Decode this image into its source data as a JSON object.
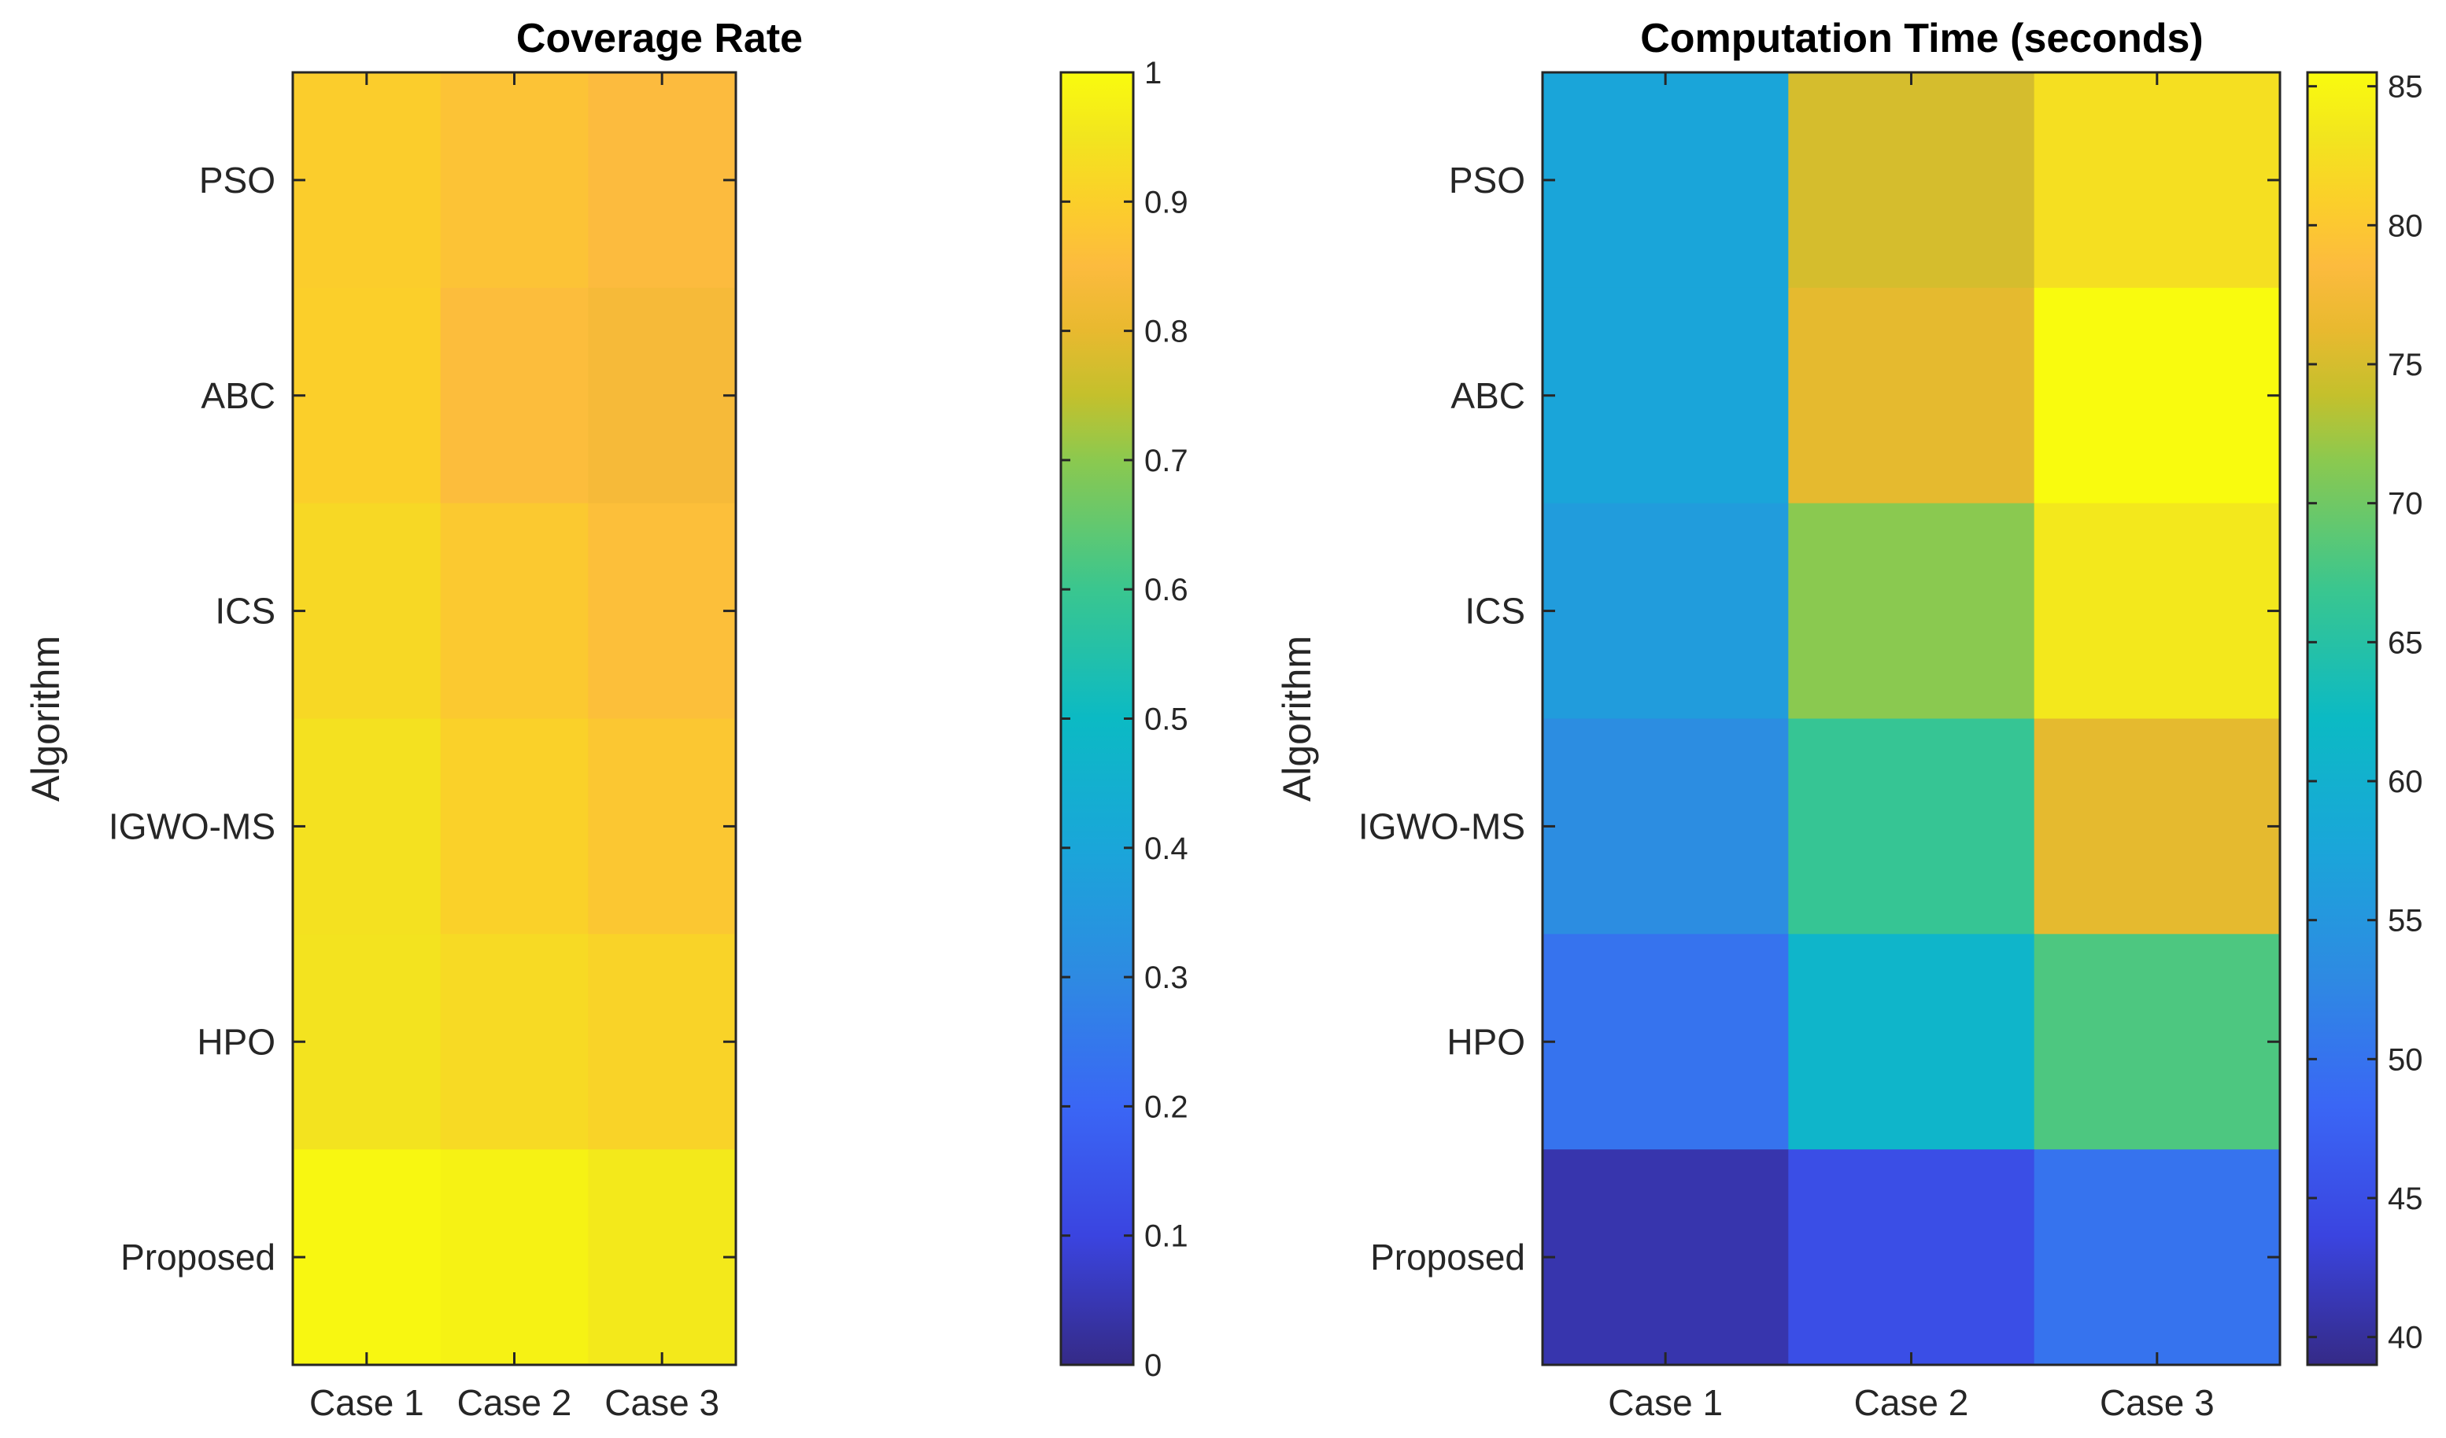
{
  "chart_data": [
    {
      "type": "heatmap",
      "title": "Coverage Rate",
      "xlabel": "",
      "ylabel": "Algorithm",
      "categories": [
        "Case 1",
        "Case 2",
        "Case 3"
      ],
      "rows": [
        "PSO",
        "ABC",
        "ICS",
        "IGWO-MS",
        "HPO",
        "Proposed"
      ],
      "values": [
        [
          0.895,
          0.87,
          0.85
        ],
        [
          0.9,
          0.855,
          0.835
        ],
        [
          0.92,
          0.885,
          0.86
        ],
        [
          0.94,
          0.905,
          0.88
        ],
        [
          0.945,
          0.925,
          0.91
        ],
        [
          0.99,
          0.98,
          0.96
        ]
      ],
      "clim": [
        0,
        1
      ],
      "colorbar_ticks": [
        "0",
        "0.1",
        "0.2",
        "0.3",
        "0.4",
        "0.5",
        "0.6",
        "0.7",
        "0.8",
        "0.9",
        "1"
      ]
    },
    {
      "type": "heatmap",
      "title": "Computation Time (seconds)",
      "xlabel": "",
      "ylabel": "Algorithm",
      "categories": [
        "Case 1",
        "Case 2",
        "Case 3"
      ],
      "rows": [
        "PSO",
        "ABC",
        "ICS",
        "IGWO-MS",
        "HPO",
        "Proposed"
      ],
      "values": [
        [
          57.5,
          75.0,
          82.5
        ],
        [
          57.5,
          76.0,
          85.5
        ],
        [
          56.0,
          71.5,
          83.5
        ],
        [
          53.5,
          66.5,
          76.0
        ],
        [
          50.0,
          61.0,
          68.0
        ],
        [
          41.0,
          45.0,
          50.0
        ]
      ],
      "clim": [
        39,
        85.5
      ],
      "colorbar_ticks": [
        "40",
        "45",
        "50",
        "55",
        "60",
        "65",
        "70",
        "75",
        "80",
        "85"
      ]
    }
  ],
  "colormap": "parula"
}
